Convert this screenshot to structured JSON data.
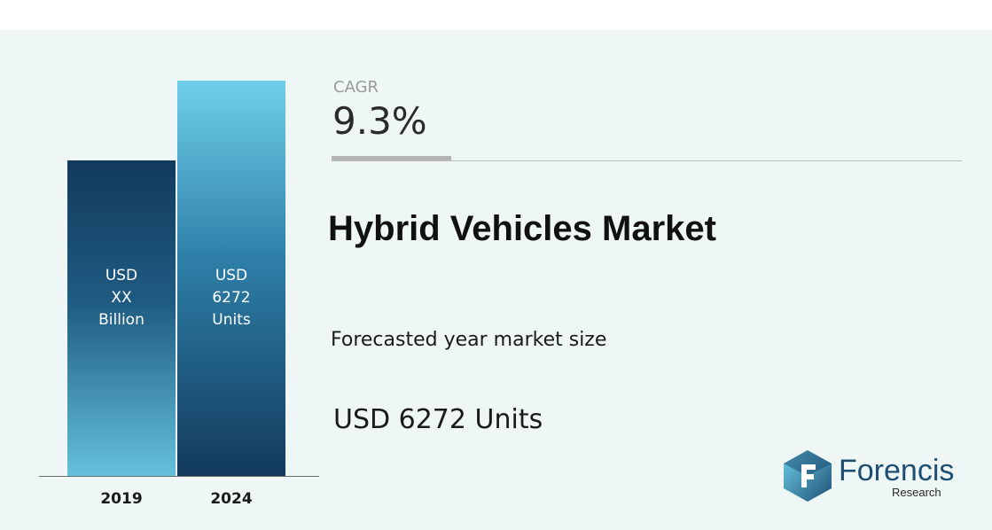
{
  "chart_data": {
    "type": "bar",
    "title": "Hybrid Vehicles Market",
    "categories": [
      "2019",
      "2024"
    ],
    "series": [
      {
        "values": [
          null,
          6272
        ]
      }
    ],
    "bar_labels": [
      [
        "USD",
        "XX",
        "Billion"
      ],
      [
        "USD",
        "6272",
        "Units"
      ]
    ],
    "xlabel": "",
    "ylabel": "",
    "grid": false
  },
  "cagr": {
    "label": "CAGR",
    "value": "9.3%"
  },
  "forecast": {
    "label": "Forecasted year market size",
    "value": "USD 6272 Units"
  },
  "logo": {
    "name": "Forencis",
    "sub": "Research"
  },
  "colors": {
    "panel_bg": "#eef7f6",
    "bar_dark": "#123a5c",
    "bar_light": "#6fd0ea",
    "brand": "#1e4f73"
  }
}
